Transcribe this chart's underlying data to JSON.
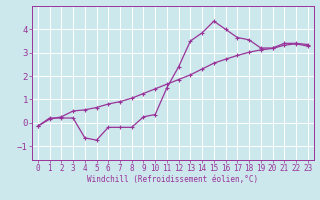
{
  "xlabel": "Windchill (Refroidissement éolien,°C)",
  "bg_color": "#cce8ec",
  "grid_color": "#ffffff",
  "line_color": "#993399",
  "xlim": [
    -0.5,
    23.5
  ],
  "ylim": [
    -1.6,
    5.0
  ],
  "xticks": [
    0,
    1,
    2,
    3,
    4,
    5,
    6,
    7,
    8,
    9,
    10,
    11,
    12,
    13,
    14,
    15,
    16,
    17,
    18,
    19,
    20,
    21,
    22,
    23
  ],
  "yticks": [
    -1,
    0,
    1,
    2,
    3,
    4
  ],
  "curve1_x": [
    0,
    1,
    2,
    3,
    4,
    5,
    6,
    7,
    8,
    9,
    10,
    11,
    12,
    13,
    14,
    15,
    16,
    17,
    18,
    19,
    20,
    21,
    22,
    23
  ],
  "curve1_y": [
    -0.15,
    0.2,
    0.2,
    0.2,
    -0.65,
    -0.75,
    -0.2,
    -0.2,
    -0.2,
    0.25,
    0.35,
    1.5,
    2.4,
    3.5,
    3.85,
    4.35,
    4.0,
    3.65,
    3.55,
    3.2,
    3.2,
    3.4,
    3.4,
    3.35
  ],
  "curve2_x": [
    0,
    1,
    2,
    3,
    4,
    5,
    6,
    7,
    8,
    9,
    10,
    11,
    12,
    13,
    14,
    15,
    16,
    17,
    18,
    19,
    20,
    21,
    22,
    23
  ],
  "curve2_y": [
    -0.15,
    0.15,
    0.25,
    0.5,
    0.55,
    0.65,
    0.8,
    0.9,
    1.05,
    1.25,
    1.45,
    1.65,
    1.85,
    2.05,
    2.3,
    2.55,
    2.72,
    2.88,
    3.02,
    3.12,
    3.18,
    3.32,
    3.38,
    3.28
  ],
  "xlabel_fontsize": 5.5,
  "tick_fontsize": 5.5,
  "linewidth": 0.9,
  "markersize": 2.5
}
